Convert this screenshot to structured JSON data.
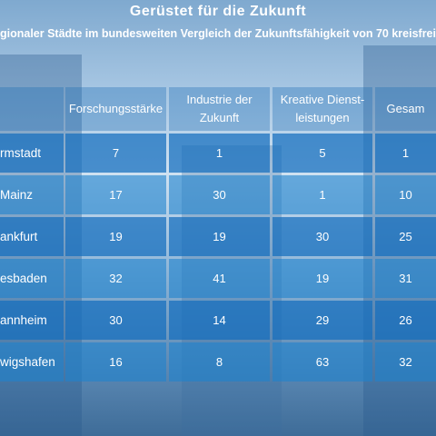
{
  "header": {
    "title": "Gerüstet für die Zukunft",
    "subtitle": "gionaler Städte im bundesweiten Vergleich der Zukunftsfähigkeit von 70 kreisfrei"
  },
  "table": {
    "columns": [
      "Forschungsstärke",
      "Industrie der\nZukunft",
      "Kreative Dienst-\nleistungen",
      "Gesam"
    ],
    "rows": [
      [
        "rmstadt",
        7,
        1,
        5,
        1
      ],
      [
        "Mainz",
        17,
        30,
        1,
        10
      ],
      [
        "ankfurt",
        19,
        19,
        30,
        25
      ],
      [
        "esbaden",
        32,
        41,
        19,
        31
      ],
      [
        "annheim",
        30,
        14,
        29,
        26
      ],
      [
        "wigshafen",
        16,
        8,
        63,
        32
      ]
    ]
  }
}
